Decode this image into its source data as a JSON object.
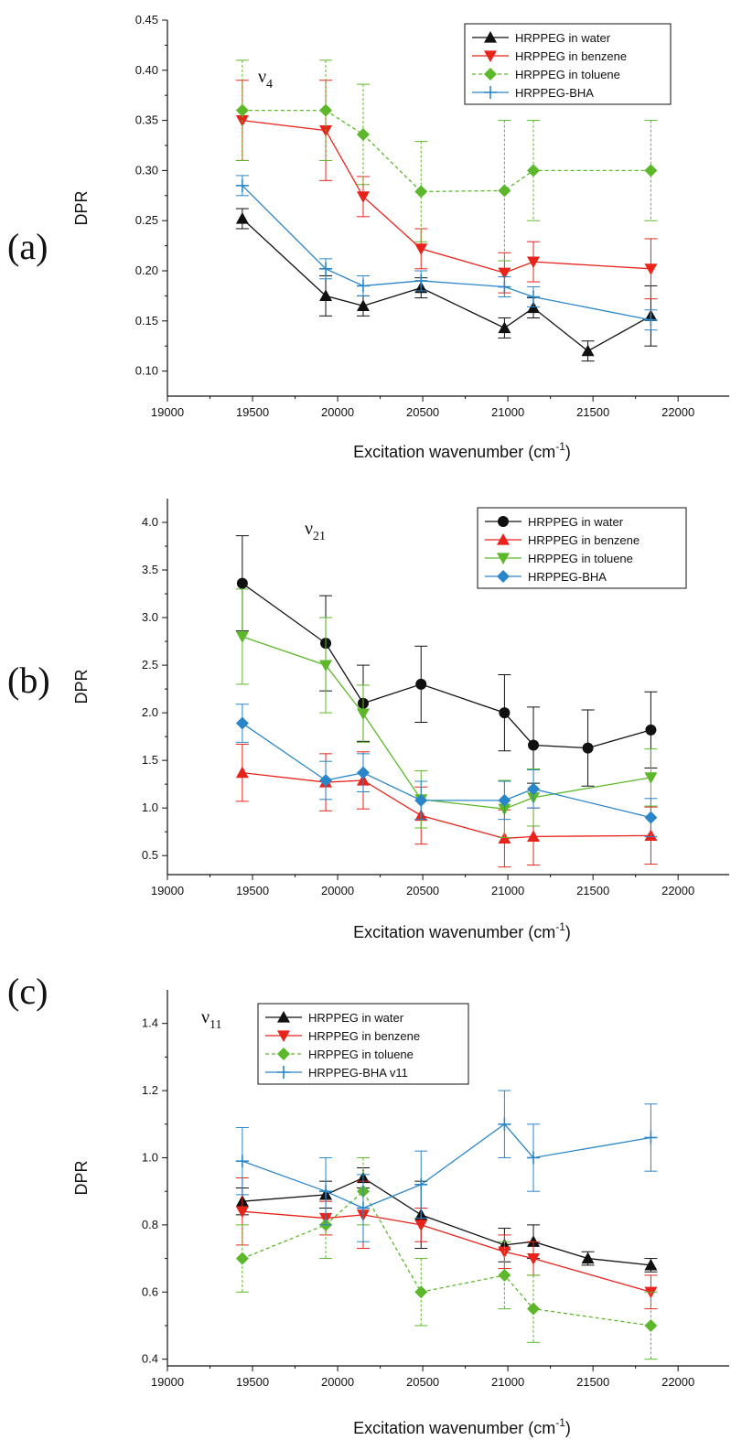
{
  "colors": {
    "water": "#111111",
    "benzene": "#e8231c",
    "toluene": "#5cb82a",
    "bha": "#2a86c8"
  },
  "chart_data": [
    {
      "type": "line",
      "panel": "(a)",
      "annotation": "ν",
      "annotation_sub": "4",
      "xlabel": "Excitation wavenumber (cm",
      "xlabel_sup": "-1",
      "xlabel_end": ")",
      "ylabel": "DPR",
      "xlim": [
        19000,
        22300
      ],
      "ylim": [
        0.075,
        0.45
      ],
      "xticks": [
        19000,
        19500,
        20000,
        20500,
        21000,
        21500,
        22000
      ],
      "xtick_labels": [
        "19000",
        "19500",
        "20000",
        "20500",
        "21000",
        "21500",
        "22000"
      ],
      "yticks": [
        0.1,
        0.15,
        0.2,
        0.25,
        0.3,
        0.35,
        0.4,
        0.45
      ],
      "ytick_labels": [
        "0.10",
        "0.15",
        "0.20",
        "0.25",
        "0.30",
        "0.35",
        "0.40",
        "0.45"
      ],
      "legend_position": "top-right",
      "series": [
        {
          "name": "HRPPEG in water",
          "color": "#111111",
          "marker": "triangle-up",
          "dash": "",
          "x": [
            19440,
            19930,
            20150,
            20490,
            20980,
            21150,
            21470,
            21840
          ],
          "y": [
            0.252,
            0.175,
            0.165,
            0.183,
            0.143,
            0.163,
            0.12,
            0.155
          ],
          "err": [
            0.01,
            0.02,
            0.01,
            0.01,
            0.01,
            0.01,
            0.01,
            0.03
          ]
        },
        {
          "name": "HRPPEG in benzene",
          "color": "#e8231c",
          "marker": "triangle-down",
          "dash": "",
          "x": [
            19440,
            19930,
            20150,
            20490,
            20980,
            21150,
            21840
          ],
          "y": [
            0.35,
            0.34,
            0.274,
            0.222,
            0.198,
            0.209,
            0.202
          ],
          "err": [
            0.04,
            0.05,
            0.02,
            0.02,
            0.02,
            0.02,
            0.03
          ]
        },
        {
          "name": "HRPPEG in toluene",
          "color": "#5cb82a",
          "marker": "diamond",
          "dash": "4,3",
          "x": [
            19440,
            19930,
            20150,
            20490,
            20980,
            21150,
            21840
          ],
          "y": [
            0.36,
            0.36,
            0.336,
            0.279,
            0.28,
            0.3,
            0.3
          ],
          "err": [
            0.05,
            0.05,
            0.05,
            0.05,
            0.07,
            0.05,
            0.05
          ]
        },
        {
          "name": "HRPPEG-BHA",
          "color": "#2a86c8",
          "marker": "plus",
          "dash": "",
          "x": [
            19440,
            19930,
            20150,
            20490,
            20980,
            21150,
            21840
          ],
          "y": [
            0.285,
            0.202,
            0.185,
            0.19,
            0.184,
            0.174,
            0.151
          ],
          "err": [
            0.01,
            0.01,
            0.01,
            0.01,
            0.01,
            0.01,
            0.01
          ]
        }
      ]
    },
    {
      "type": "line",
      "panel": "(b)",
      "annotation": "ν",
      "annotation_sub": "21",
      "xlabel": "Excitation wavenumber (cm",
      "xlabel_sup": "-1",
      "xlabel_end": ")",
      "ylabel": "DPR",
      "xlim": [
        19000,
        22300
      ],
      "ylim": [
        0.3,
        4.25
      ],
      "xticks": [
        19000,
        19500,
        20000,
        20500,
        21000,
        21500,
        22000
      ],
      "xtick_labels": [
        "19000",
        "19500",
        "20000",
        "20500",
        "21000",
        "21500",
        "22000"
      ],
      "yticks": [
        0.5,
        1.0,
        1.5,
        2.0,
        2.5,
        3.0,
        3.5,
        4.0
      ],
      "ytick_labels": [
        "0.5",
        "1.0",
        "1.5",
        "2.0",
        "2.5",
        "3.0",
        "3.5",
        "4.0"
      ],
      "legend_position": "top-right",
      "series": [
        {
          "name": "HRPPEG in water",
          "color": "#111111",
          "marker": "circle",
          "dash": "",
          "x": [
            19440,
            19930,
            20150,
            20490,
            20980,
            21150,
            21470,
            21840
          ],
          "y": [
            3.36,
            2.73,
            2.1,
            2.3,
            2.0,
            1.66,
            1.63,
            1.82
          ],
          "err": [
            0.5,
            0.5,
            0.4,
            0.4,
            0.4,
            0.4,
            0.4,
            0.4
          ]
        },
        {
          "name": "HRPPEG in benzene",
          "color": "#e8231c",
          "marker": "triangle-up",
          "dash": "",
          "x": [
            19440,
            19930,
            20150,
            20490,
            20980,
            21150,
            21840
          ],
          "y": [
            1.37,
            1.27,
            1.29,
            0.92,
            0.68,
            0.7,
            0.71
          ],
          "err": [
            0.3,
            0.3,
            0.3,
            0.3,
            0.3,
            0.3,
            0.3
          ]
        },
        {
          "name": "HRPPEG in toluene",
          "color": "#5cb82a",
          "marker": "triangle-down",
          "dash": "",
          "x": [
            19440,
            19930,
            20150,
            20490,
            20980,
            21150,
            21840
          ],
          "y": [
            2.8,
            2.5,
            1.99,
            1.09,
            0.99,
            1.11,
            1.32
          ],
          "err": [
            0.5,
            0.5,
            0.3,
            0.3,
            0.3,
            0.3,
            0.3
          ]
        },
        {
          "name": "HRPPEG-BHA",
          "color": "#2a86c8",
          "marker": "diamond",
          "dash": "",
          "x": [
            19440,
            19930,
            20150,
            20490,
            20980,
            21150,
            21840
          ],
          "y": [
            1.89,
            1.29,
            1.37,
            1.08,
            1.08,
            1.2,
            0.9
          ],
          "err": [
            0.2,
            0.2,
            0.2,
            0.2,
            0.2,
            0.2,
            0.2
          ]
        }
      ]
    },
    {
      "type": "line",
      "panel": "(c)",
      "annotation": "ν",
      "annotation_sub": "11",
      "xlabel": "Excitation wavenumber (cm",
      "xlabel_sup": "-1",
      "xlabel_end": ")",
      "ylabel": "DPR",
      "xlim": [
        19000,
        22300
      ],
      "ylim": [
        0.38,
        1.5
      ],
      "xticks": [
        19000,
        19500,
        20000,
        20500,
        21000,
        21500,
        22000
      ],
      "xtick_labels": [
        "19000",
        "19500",
        "20000",
        "20500",
        "21000",
        "21500",
        "22000"
      ],
      "yticks": [
        0.4,
        0.6,
        0.8,
        1.0,
        1.2,
        1.4
      ],
      "ytick_labels": [
        "0.4",
        "0.6",
        "0.8",
        "1.0",
        "1.2",
        "1.4"
      ],
      "legend_position": "top-left",
      "series": [
        {
          "name": "HRPPEG in water",
          "color": "#111111",
          "marker": "triangle-up",
          "dash": "",
          "x": [
            19440,
            19930,
            20150,
            20490,
            20980,
            21150,
            21470,
            21840
          ],
          "y": [
            0.87,
            0.89,
            0.94,
            0.83,
            0.74,
            0.75,
            0.7,
            0.68
          ],
          "err": [
            0.04,
            0.04,
            0.03,
            0.1,
            0.05,
            0.05,
            0.02,
            0.02
          ]
        },
        {
          "name": "HRPPEG in benzene",
          "color": "#e8231c",
          "marker": "triangle-down",
          "dash": "",
          "x": [
            19440,
            19930,
            20150,
            20490,
            20980,
            21150,
            21840
          ],
          "y": [
            0.84,
            0.82,
            0.83,
            0.8,
            0.72,
            0.7,
            0.6
          ],
          "err": [
            0.1,
            0.05,
            0.1,
            0.05,
            0.05,
            0.05,
            0.05
          ]
        },
        {
          "name": "HRPPEG in toluene",
          "color": "#5cb82a",
          "marker": "diamond",
          "dash": "4,3",
          "x": [
            19440,
            19930,
            20150,
            20490,
            20980,
            21150,
            21840
          ],
          "y": [
            0.7,
            0.8,
            0.9,
            0.6,
            0.65,
            0.55,
            0.5
          ],
          "err": [
            0.1,
            0.1,
            0.1,
            0.1,
            0.1,
            0.1,
            0.1
          ]
        },
        {
          "name": "HRPPEG-BHA v11",
          "color": "#2a86c8",
          "marker": "plus",
          "dash": "",
          "x": [
            19440,
            19930,
            20150,
            20490,
            20980,
            21150,
            21840
          ],
          "y": [
            0.99,
            0.9,
            0.85,
            0.92,
            1.1,
            1.0,
            1.06
          ],
          "err": [
            0.1,
            0.1,
            0.1,
            0.1,
            0.1,
            0.1,
            0.1
          ]
        }
      ]
    }
  ]
}
